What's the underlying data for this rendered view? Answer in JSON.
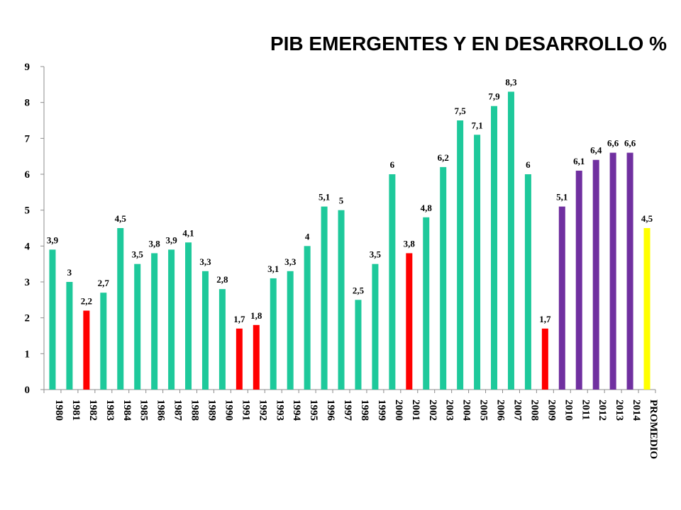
{
  "chart_data": {
    "type": "bar",
    "title": "PIB  EMERGENTES Y EN DESARROLLO %",
    "xlabel": "",
    "ylabel": "",
    "ylim": [
      0,
      9
    ],
    "yticks": [
      0,
      1,
      2,
      3,
      4,
      5,
      6,
      7,
      8,
      9
    ],
    "grid": false,
    "legend": "none",
    "categories": [
      "1980",
      "1981",
      "1982",
      "1983",
      "1984",
      "1985",
      "1986",
      "1987",
      "1988",
      "1989",
      "1990",
      "1991",
      "1992",
      "1993",
      "1994",
      "1995",
      "1996",
      "1997",
      "1998",
      "1999",
      "2000",
      "2001",
      "2002",
      "2003",
      "2004",
      "2005",
      "2006",
      "2007",
      "2008",
      "2009",
      "2010",
      "2011",
      "2012",
      "2013",
      "2014",
      "PROMEDIO"
    ],
    "values": [
      3.9,
      3,
      2.2,
      2.7,
      4.5,
      3.5,
      3.8,
      3.9,
      4.1,
      3.3,
      2.8,
      1.7,
      1.8,
      3.1,
      3.3,
      4,
      5.1,
      5,
      2.5,
      3.5,
      6,
      3.8,
      4.8,
      6.2,
      7.5,
      7.1,
      7.9,
      8.3,
      6,
      1.7,
      5.1,
      6.1,
      6.4,
      6.6,
      6.6,
      4.5
    ],
    "value_labels": [
      "3,9",
      "3",
      "2,2",
      "2,7",
      "4,5",
      "3,5",
      "3,8",
      "3,9",
      "4,1",
      "3,3",
      "2,8",
      "1,7",
      "1,8",
      "3,1",
      "3,3",
      "4",
      "5,1",
      "5",
      "2,5",
      "3,5",
      "6",
      "3,8",
      "4,8",
      "6,2",
      "7,5",
      "7,1",
      "7,9",
      "8,3",
      "6",
      "1,7",
      "5,1",
      "6,1",
      "6,4",
      "6,6",
      "6,6",
      "4,5"
    ],
    "colors": [
      "#1ec99b",
      "#1ec99b",
      "#ff0000",
      "#1ec99b",
      "#1ec99b",
      "#1ec99b",
      "#1ec99b",
      "#1ec99b",
      "#1ec99b",
      "#1ec99b",
      "#1ec99b",
      "#ff0000",
      "#ff0000",
      "#1ec99b",
      "#1ec99b",
      "#1ec99b",
      "#1ec99b",
      "#1ec99b",
      "#1ec99b",
      "#1ec99b",
      "#1ec99b",
      "#ff0000",
      "#1ec99b",
      "#1ec99b",
      "#1ec99b",
      "#1ec99b",
      "#1ec99b",
      "#1ec99b",
      "#1ec99b",
      "#ff0000",
      "#7030a0",
      "#7030a0",
      "#7030a0",
      "#7030a0",
      "#7030a0",
      "#ffff00"
    ]
  }
}
